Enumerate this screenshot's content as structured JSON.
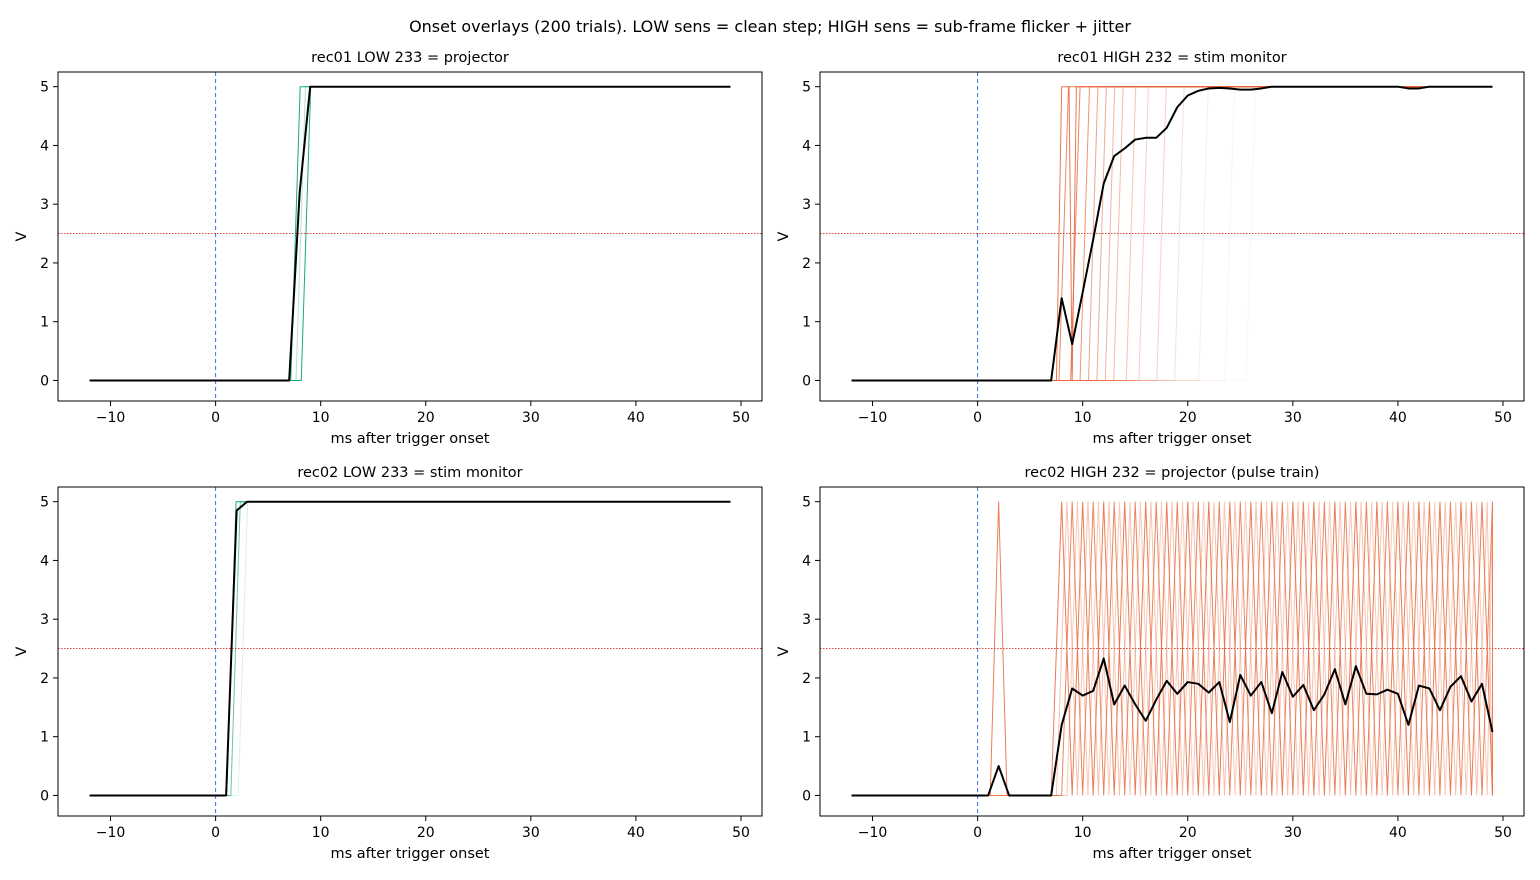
{
  "figure": {
    "title": "Onset overlays (200 trials). LOW sens = clean step; HIGH sens = sub-frame flicker + jitter"
  },
  "chart_data": [
    {
      "type": "line",
      "title": "rec01  LOW 233 = projector",
      "xlabel": "ms after trigger onset",
      "ylabel": "V",
      "xlim": [
        -15,
        52
      ],
      "ylim": [
        -0.35,
        5.25
      ],
      "xticks": [
        -10,
        0,
        10,
        20,
        30,
        40,
        50
      ],
      "yticks": [
        0,
        1,
        2,
        3,
        4,
        5
      ],
      "trigger_onset_ms": 0,
      "threshold_v": 2.5,
      "trial_color": "#009e73",
      "mean_color": "#000000",
      "trials": [
        {
          "onset": 7.6,
          "alpha": 0.9
        },
        {
          "onset": 8.6,
          "alpha": 0.9
        },
        {
          "onset": 8.1,
          "alpha": 0.3
        }
      ],
      "mean": {
        "x": [
          -12,
          7,
          8,
          9,
          49
        ],
        "y": [
          0,
          0,
          3.2,
          5,
          5
        ]
      }
    },
    {
      "type": "line",
      "title": "rec01  HIGH 232 = stim monitor",
      "xlabel": "ms after trigger onset",
      "ylabel": "V",
      "xlim": [
        -15,
        52
      ],
      "ylim": [
        -0.35,
        5.25
      ],
      "xticks": [
        -10,
        0,
        10,
        20,
        30,
        40,
        50
      ],
      "yticks": [
        0,
        1,
        2,
        3,
        4,
        5
      ],
      "trigger_onset_ms": 0,
      "threshold_v": 2.5,
      "trial_color": "#e8663a",
      "mean_color": "#000000",
      "trials": [
        {
          "onset": 7.5,
          "alpha": 0.9,
          "dip": 9
        },
        {
          "onset": 8.2,
          "alpha": 0.8
        },
        {
          "onset": 9.3,
          "alpha": 0.8
        },
        {
          "onset": 10.2,
          "alpha": 0.7
        },
        {
          "onset": 11.0,
          "alpha": 0.6
        },
        {
          "onset": 11.8,
          "alpha": 0.55
        },
        {
          "onset": 12.6,
          "alpha": 0.5
        },
        {
          "onset": 13.4,
          "alpha": 0.45
        },
        {
          "onset": 14.6,
          "alpha": 0.4
        },
        {
          "onset": 15.8,
          "alpha": 0.3
        },
        {
          "onset": 17.5,
          "alpha": 0.3
        },
        {
          "onset": 19.2,
          "alpha": 0.2
        },
        {
          "onset": 21.5,
          "alpha": 0.12
        },
        {
          "onset": 24.0,
          "alpha": 0.08
        },
        {
          "onset": 26.0,
          "alpha": 0.06
        }
      ],
      "mean": {
        "x": [
          -12,
          7,
          8,
          9,
          10,
          11,
          12,
          13,
          14,
          15,
          16,
          17,
          18,
          19,
          20,
          21,
          22,
          23,
          24,
          25,
          26,
          27,
          28,
          29,
          30,
          40,
          41,
          42,
          43,
          49
        ],
        "y": [
          0,
          0,
          1.4,
          0.62,
          1.5,
          2.4,
          3.35,
          3.82,
          3.95,
          4.1,
          4.13,
          4.13,
          4.3,
          4.65,
          4.85,
          4.93,
          4.97,
          4.98,
          4.97,
          4.95,
          4.95,
          4.97,
          5.0,
          5.0,
          5.0,
          5.0,
          4.97,
          4.97,
          5.0,
          5.0
        ]
      }
    },
    {
      "type": "line",
      "title": "rec02  LOW 233 = stim monitor",
      "xlabel": "ms after trigger onset",
      "ylabel": "V",
      "xlim": [
        -15,
        52
      ],
      "ylim": [
        -0.35,
        5.25
      ],
      "xticks": [
        -10,
        0,
        10,
        20,
        30,
        40,
        50
      ],
      "yticks": [
        0,
        1,
        2,
        3,
        4,
        5
      ],
      "trigger_onset_ms": 0,
      "threshold_v": 2.5,
      "trial_color": "#009e73",
      "mean_color": "#000000",
      "trials": [
        {
          "onset": 1.5,
          "alpha": 0.9
        },
        {
          "onset": 1.9,
          "alpha": 0.6
        },
        {
          "onset": 2.6,
          "alpha": 0.15
        }
      ],
      "mean": {
        "x": [
          -12,
          1,
          2,
          3,
          49
        ],
        "y": [
          0,
          0,
          4.85,
          5,
          5
        ]
      }
    },
    {
      "type": "line",
      "title": "rec02  HIGH 232 = projector (pulse train)",
      "xlabel": "ms after trigger onset",
      "ylabel": "V",
      "xlim": [
        -15,
        52
      ],
      "ylim": [
        -0.35,
        5.25
      ],
      "xticks": [
        -10,
        0,
        10,
        20,
        30,
        40,
        50
      ],
      "yticks": [
        0,
        1,
        2,
        3,
        4,
        5
      ],
      "trigger_onset_ms": 0,
      "threshold_v": 2.5,
      "trial_color": "#e8663a",
      "mean_color": "#000000",
      "pulse_trains": [
        {
          "start": 7.0,
          "period": 2,
          "alpha": 0.85,
          "spike": 2
        },
        {
          "start": 8.0,
          "period": 2,
          "alpha": 0.8
        },
        {
          "start": 7.5,
          "period": 2,
          "alpha": 0.4
        },
        {
          "start": 8.5,
          "period": 2,
          "alpha": 0.35
        }
      ],
      "mean": {
        "x": [
          -12,
          1,
          2,
          3,
          4,
          5,
          6,
          7,
          8,
          9,
          10,
          11,
          12,
          13,
          14,
          15,
          16,
          17,
          18,
          19,
          20,
          21,
          22,
          23,
          24,
          25,
          26,
          27,
          28,
          29,
          30,
          31,
          32,
          33,
          34,
          35,
          36,
          37,
          38,
          39,
          40,
          41,
          42,
          43,
          44,
          45,
          46,
          47,
          48,
          49
        ],
        "y": [
          0,
          0,
          0.5,
          0,
          0,
          0,
          0,
          0,
          1.2,
          1.82,
          1.7,
          1.78,
          2.33,
          1.55,
          1.87,
          1.55,
          1.27,
          1.63,
          1.95,
          1.73,
          1.93,
          1.9,
          1.75,
          1.93,
          1.25,
          2.05,
          1.7,
          1.93,
          1.4,
          2.1,
          1.68,
          1.88,
          1.45,
          1.72,
          2.15,
          1.55,
          2.2,
          1.73,
          1.72,
          1.8,
          1.73,
          1.2,
          1.87,
          1.82,
          1.45,
          1.85,
          2.03,
          1.6,
          1.9,
          1.08
        ]
      }
    }
  ]
}
